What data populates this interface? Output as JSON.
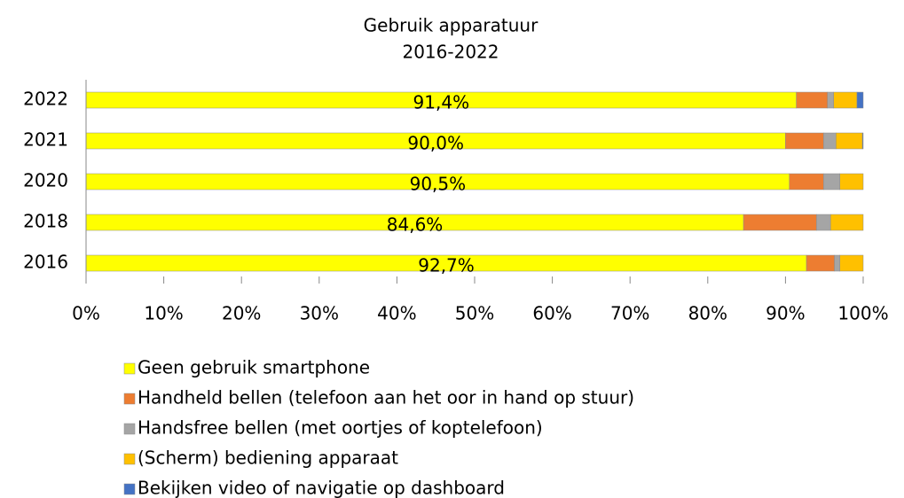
{
  "chart_data": {
    "type": "stacked-bar-horizontal",
    "title": "Gebruik apparatuur",
    "subtitle": "2016-2022",
    "categories": [
      "2022",
      "2021",
      "2020",
      "2018",
      "2016"
    ],
    "series": [
      {
        "name": "Geen gebruik smartphone",
        "color": "#ffff00",
        "values": [
          91.4,
          90.0,
          90.5,
          84.6,
          92.7
        ],
        "value_labels": [
          "91,4%",
          "90,0%",
          "90,5%",
          "84,6%",
          "92,7%"
        ]
      },
      {
        "name": "Handheld bellen (telefoon aan het oor in hand op stuur)",
        "color": "#ed7d31",
        "values": [
          4.0,
          4.9,
          4.4,
          9.4,
          3.6
        ]
      },
      {
        "name": "Handsfree bellen (met oortjes of koptelefoon)",
        "color": "#a5a5a5",
        "values": [
          0.8,
          1.6,
          2.1,
          1.8,
          0.7
        ]
      },
      {
        "name": "(Scherm) bediening apparaat",
        "color": "#ffc000",
        "values": [
          3.0,
          3.4,
          3.0,
          4.2,
          3.0
        ]
      },
      {
        "name": "Bekijken video of navigatie op dashboard",
        "color": "#4472c4",
        "values": [
          0.8,
          0.1,
          0,
          0,
          0
        ]
      }
    ],
    "xlim": [
      0,
      100
    ],
    "xticks": [
      {
        "value": 0,
        "label": "0%"
      },
      {
        "value": 10,
        "label": "10%"
      },
      {
        "value": 20,
        "label": "20%"
      },
      {
        "value": 30,
        "label": "30%"
      },
      {
        "value": 40,
        "label": "40%"
      },
      {
        "value": 50,
        "label": "50%"
      },
      {
        "value": 60,
        "label": "60%"
      },
      {
        "value": 70,
        "label": "70%"
      },
      {
        "value": 80,
        "label": "80%"
      },
      {
        "value": 90,
        "label": "90%"
      },
      {
        "value": 100,
        "label": "100%"
      }
    ],
    "legend": "bottom"
  }
}
